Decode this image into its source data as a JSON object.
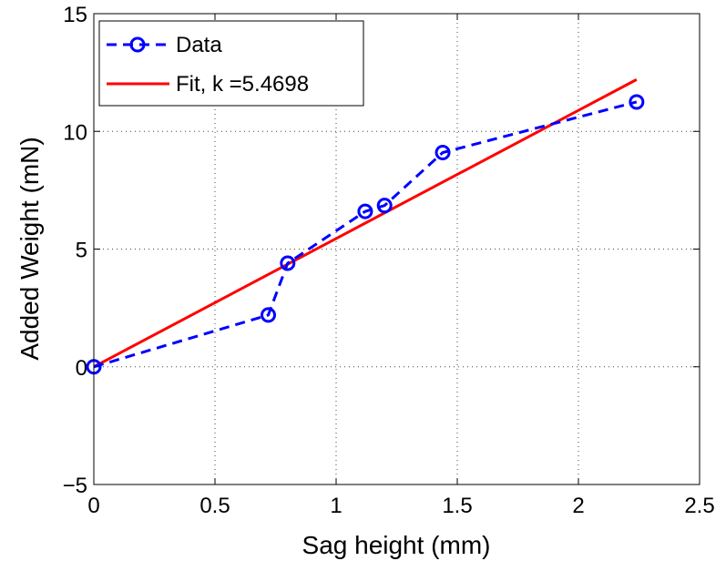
{
  "chart_data": {
    "type": "line",
    "xlabel": "Sag height (mm)",
    "ylabel": "Added Weight (mN)",
    "xlim": [
      0,
      2.5
    ],
    "ylim": [
      -5,
      15
    ],
    "xticks": [
      0,
      0.5,
      1,
      1.5,
      2,
      2.5
    ],
    "xtick_labels": [
      "0",
      "0.5",
      "1",
      "1.5",
      "2",
      "2.5"
    ],
    "yticks": [
      -5,
      0,
      5,
      10,
      15
    ],
    "ytick_labels": [
      "−5",
      "0",
      "5",
      "10",
      "15"
    ],
    "grid": true,
    "legend_position": "top-left",
    "series": [
      {
        "name": "Data",
        "style": "dashed-circles",
        "color": "#0000ff",
        "x": [
          0,
          0.72,
          0.8,
          1.12,
          1.2,
          1.44,
          2.24
        ],
        "y": [
          0,
          2.2,
          4.4,
          6.6,
          6.85,
          9.1,
          11.25
        ]
      },
      {
        "name": "Fit, k =5.4698",
        "style": "solid",
        "color": "#ff0000",
        "x": [
          0,
          2.24
        ],
        "y": [
          0,
          12.2
        ]
      }
    ]
  }
}
